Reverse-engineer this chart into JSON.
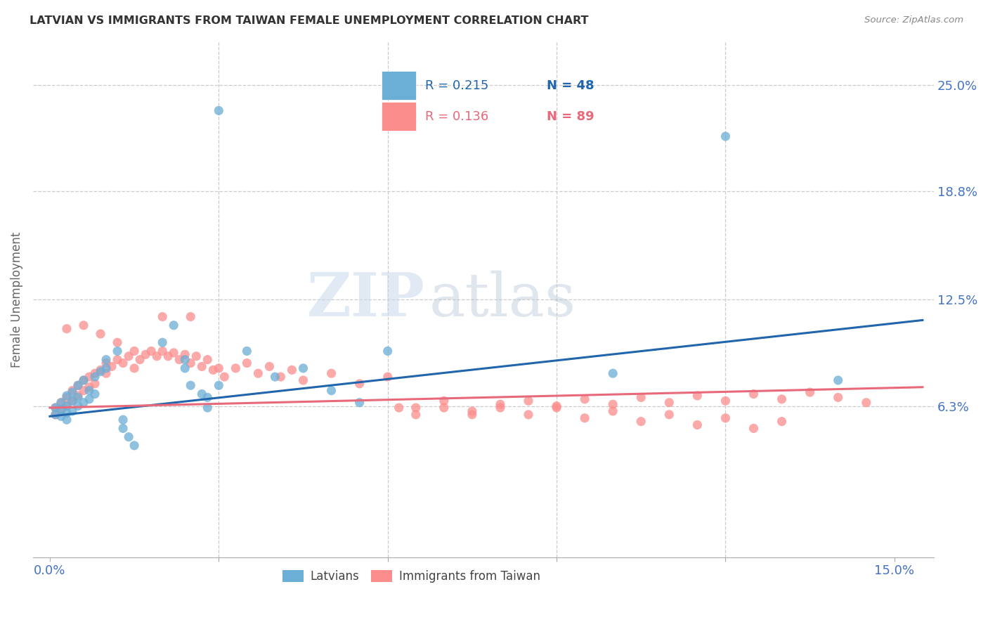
{
  "title": "LATVIAN VS IMMIGRANTS FROM TAIWAN FEMALE UNEMPLOYMENT CORRELATION CHART",
  "source": "Source: ZipAtlas.com",
  "ylabel": "Female Unemployment",
  "xlim": [
    0.0,
    0.155
  ],
  "ylim": [
    -0.025,
    0.275
  ],
  "xtick_positions": [
    0.0,
    0.03,
    0.06,
    0.09,
    0.12,
    0.15
  ],
  "xticklabels": [
    "0.0%",
    "",
    "",
    "",
    "",
    "15.0%"
  ],
  "ytick_right": [
    0.063,
    0.125,
    0.188,
    0.25
  ],
  "ytick_right_labels": [
    "6.3%",
    "12.5%",
    "18.8%",
    "25.0%"
  ],
  "latvian_color": "#6baed6",
  "taiwan_color": "#fc8d8d",
  "trend_latvian_color": "#2166ac",
  "trend_taiwan_color": "#e8697a",
  "legend_r_latvian": "R = 0.215",
  "legend_n_latvian": "N = 48",
  "legend_r_taiwan": "R = 0.136",
  "legend_n_taiwan": "N = 89",
  "watermark_zip": "ZIP",
  "watermark_atlas": "atlas",
  "lat_trend": [
    0.057,
    0.113
  ],
  "tai_trend": [
    0.062,
    0.074
  ],
  "latvian_x": [
    0.001,
    0.001,
    0.002,
    0.002,
    0.002,
    0.003,
    0.003,
    0.003,
    0.003,
    0.004,
    0.004,
    0.004,
    0.005,
    0.005,
    0.005,
    0.006,
    0.006,
    0.007,
    0.007,
    0.008,
    0.008,
    0.009,
    0.01,
    0.01,
    0.012,
    0.013,
    0.013,
    0.014,
    0.015,
    0.02,
    0.022,
    0.024,
    0.024,
    0.025,
    0.027,
    0.028,
    0.028,
    0.03,
    0.035,
    0.04,
    0.045,
    0.05,
    0.055,
    0.06,
    0.1,
    0.12,
    0.14,
    0.03
  ],
  "latvian_y": [
    0.062,
    0.058,
    0.065,
    0.061,
    0.057,
    0.069,
    0.063,
    0.059,
    0.055,
    0.071,
    0.066,
    0.06,
    0.075,
    0.068,
    0.063,
    0.078,
    0.065,
    0.067,
    0.072,
    0.08,
    0.07,
    0.083,
    0.09,
    0.085,
    0.095,
    0.055,
    0.05,
    0.045,
    0.04,
    0.1,
    0.11,
    0.09,
    0.085,
    0.075,
    0.07,
    0.068,
    0.062,
    0.075,
    0.095,
    0.08,
    0.085,
    0.072,
    0.065,
    0.095,
    0.082,
    0.22,
    0.078,
    0.235
  ],
  "taiwan_x": [
    0.001,
    0.001,
    0.002,
    0.002,
    0.003,
    0.003,
    0.004,
    0.004,
    0.005,
    0.005,
    0.006,
    0.006,
    0.007,
    0.007,
    0.008,
    0.008,
    0.009,
    0.01,
    0.01,
    0.011,
    0.012,
    0.013,
    0.014,
    0.015,
    0.016,
    0.017,
    0.018,
    0.019,
    0.02,
    0.021,
    0.022,
    0.023,
    0.024,
    0.025,
    0.026,
    0.027,
    0.028,
    0.029,
    0.03,
    0.031,
    0.033,
    0.035,
    0.037,
    0.039,
    0.041,
    0.043,
    0.045,
    0.05,
    0.055,
    0.06,
    0.065,
    0.07,
    0.075,
    0.08,
    0.085,
    0.09,
    0.095,
    0.1,
    0.105,
    0.11,
    0.115,
    0.12,
    0.125,
    0.13,
    0.062,
    0.065,
    0.07,
    0.075,
    0.08,
    0.085,
    0.09,
    0.095,
    0.1,
    0.105,
    0.11,
    0.115,
    0.12,
    0.125,
    0.13,
    0.135,
    0.14,
    0.145,
    0.003,
    0.006,
    0.009,
    0.012,
    0.015,
    0.02,
    0.025
  ],
  "taiwan_y": [
    0.062,
    0.058,
    0.065,
    0.06,
    0.068,
    0.063,
    0.072,
    0.066,
    0.075,
    0.069,
    0.078,
    0.072,
    0.08,
    0.074,
    0.082,
    0.076,
    0.084,
    0.088,
    0.082,
    0.086,
    0.09,
    0.088,
    0.092,
    0.085,
    0.09,
    0.093,
    0.095,
    0.092,
    0.095,
    0.092,
    0.094,
    0.09,
    0.093,
    0.088,
    0.092,
    0.086,
    0.09,
    0.084,
    0.085,
    0.08,
    0.085,
    0.088,
    0.082,
    0.086,
    0.08,
    0.084,
    0.078,
    0.082,
    0.076,
    0.08,
    0.062,
    0.066,
    0.06,
    0.064,
    0.058,
    0.062,
    0.056,
    0.06,
    0.054,
    0.058,
    0.052,
    0.056,
    0.05,
    0.054,
    0.062,
    0.058,
    0.062,
    0.058,
    0.062,
    0.066,
    0.063,
    0.067,
    0.064,
    0.068,
    0.065,
    0.069,
    0.066,
    0.07,
    0.067,
    0.071,
    0.068,
    0.065,
    0.108,
    0.11,
    0.105,
    0.1,
    0.095,
    0.115,
    0.115
  ]
}
